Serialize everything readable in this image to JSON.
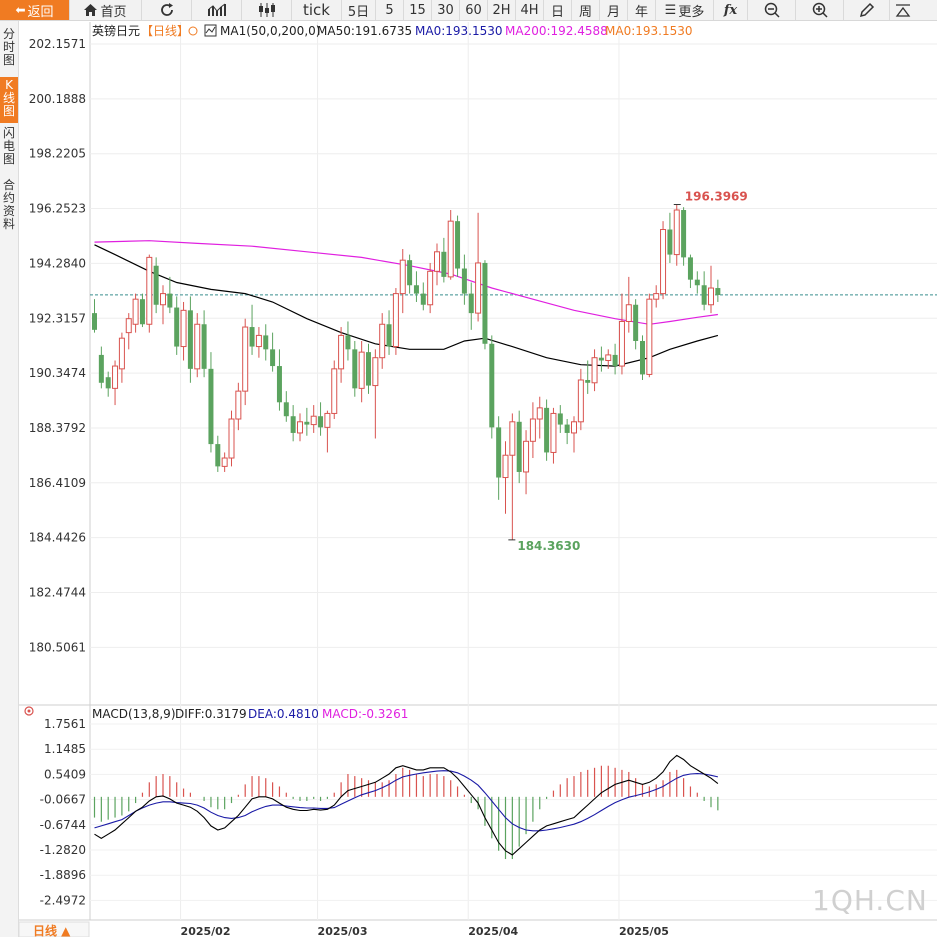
{
  "toolbar": {
    "back_label": "返回",
    "home_label": "首页",
    "tick_label": "tick",
    "periods": [
      "5日",
      "5",
      "15",
      "30",
      "60",
      "2H",
      "4H",
      "日",
      "周",
      "月",
      "年"
    ],
    "more_label": "更多",
    "fx_label": "fx"
  },
  "sidebar": {
    "items": [
      {
        "label": "分时图",
        "active": false
      },
      {
        "label": "K线图",
        "active": true
      },
      {
        "label": "闪电图",
        "active": false
      },
      {
        "label": "合约资料",
        "active": false
      }
    ]
  },
  "header": {
    "instrument": "英镑日元",
    "period_tag": "【日线】",
    "ma_indicator": "MA1(50,0,200,0)",
    "ma50_label": "MA50:191.6735",
    "ma0_label": "MA0:193.1530",
    "ma200_label": "MA200:192.4588",
    "ma0b_label": "MA0:193.1530"
  },
  "macd_header": {
    "name": "MACD(13,8,9)",
    "diff": "DIFF:0.3179",
    "dea": "DEA:0.4810",
    "macd": "MACD:-0.3261"
  },
  "footer": {
    "period_button": "日线 ▲"
  },
  "watermark": "1QH.CN",
  "colors": {
    "up": "#d9534f",
    "down": "#5ba35f",
    "ma50": "#000000",
    "ma200": "#e020e0",
    "diff": "#000000",
    "dea": "#1a1aa6",
    "accent": "#f07b22"
  },
  "chart_data": {
    "type": "candlestick",
    "price_axis_ticks": [
      202.1571,
      200.1888,
      198.2205,
      196.2523,
      194.284,
      192.3157,
      190.3474,
      188.3792,
      186.4109,
      184.4426,
      182.4744,
      180.5061
    ],
    "time_axis_labels": [
      "2025/02",
      "2025/03",
      "2025/04",
      "2025/05"
    ],
    "last_price": 193.153,
    "high_marker": 196.3969,
    "low_marker": 184.363,
    "candles": [
      {
        "o": 192.5,
        "h": 193.0,
        "l": 191.8,
        "c": 191.9
      },
      {
        "o": 191.0,
        "h": 191.3,
        "l": 189.8,
        "c": 190.0
      },
      {
        "o": 190.2,
        "h": 190.4,
        "l": 189.5,
        "c": 189.8
      },
      {
        "o": 189.8,
        "h": 190.8,
        "l": 189.2,
        "c": 190.6
      },
      {
        "o": 190.5,
        "h": 191.8,
        "l": 190.0,
        "c": 191.6
      },
      {
        "o": 191.8,
        "h": 192.5,
        "l": 191.2,
        "c": 192.3
      },
      {
        "o": 192.1,
        "h": 193.2,
        "l": 191.8,
        "c": 193.0
      },
      {
        "o": 193.0,
        "h": 193.2,
        "l": 192.0,
        "c": 192.1
      },
      {
        "o": 192.1,
        "h": 194.6,
        "l": 191.8,
        "c": 194.5
      },
      {
        "o": 194.2,
        "h": 194.5,
        "l": 192.5,
        "c": 192.8
      },
      {
        "o": 192.8,
        "h": 193.5,
        "l": 192.1,
        "c": 193.2
      },
      {
        "o": 193.2,
        "h": 193.8,
        "l": 192.5,
        "c": 192.7
      },
      {
        "o": 192.7,
        "h": 193.1,
        "l": 191.0,
        "c": 191.3
      },
      {
        "o": 191.3,
        "h": 192.9,
        "l": 190.8,
        "c": 192.6
      },
      {
        "o": 192.6,
        "h": 193.1,
        "l": 190.0,
        "c": 190.5
      },
      {
        "o": 190.5,
        "h": 192.5,
        "l": 190.2,
        "c": 192.1
      },
      {
        "o": 192.1,
        "h": 192.6,
        "l": 190.2,
        "c": 190.5
      },
      {
        "o": 190.5,
        "h": 191.1,
        "l": 187.5,
        "c": 187.8
      },
      {
        "o": 187.8,
        "h": 188.1,
        "l": 186.8,
        "c": 187.0
      },
      {
        "o": 187.0,
        "h": 187.5,
        "l": 186.8,
        "c": 187.3
      },
      {
        "o": 187.3,
        "h": 189.0,
        "l": 187.0,
        "c": 188.7
      },
      {
        "o": 188.7,
        "h": 190.0,
        "l": 188.3,
        "c": 189.7
      },
      {
        "o": 189.7,
        "h": 192.3,
        "l": 189.2,
        "c": 192.0
      },
      {
        "o": 192.0,
        "h": 192.8,
        "l": 191.0,
        "c": 191.3
      },
      {
        "o": 191.3,
        "h": 192.0,
        "l": 190.9,
        "c": 191.7
      },
      {
        "o": 191.7,
        "h": 192.1,
        "l": 190.8,
        "c": 191.2
      },
      {
        "o": 191.2,
        "h": 191.8,
        "l": 190.4,
        "c": 190.6
      },
      {
        "o": 190.6,
        "h": 191.2,
        "l": 189.0,
        "c": 189.3
      },
      {
        "o": 189.3,
        "h": 189.7,
        "l": 188.6,
        "c": 188.8
      },
      {
        "o": 188.8,
        "h": 189.2,
        "l": 187.9,
        "c": 188.2
      },
      {
        "o": 188.2,
        "h": 188.9,
        "l": 187.9,
        "c": 188.6
      },
      {
        "o": 188.6,
        "h": 189.1,
        "l": 188.1,
        "c": 188.5
      },
      {
        "o": 188.5,
        "h": 189.2,
        "l": 188.2,
        "c": 188.8
      },
      {
        "o": 188.8,
        "h": 189.3,
        "l": 188.1,
        "c": 188.4
      },
      {
        "o": 188.4,
        "h": 189.0,
        "l": 187.5,
        "c": 188.9
      },
      {
        "o": 188.9,
        "h": 190.8,
        "l": 188.7,
        "c": 190.5
      },
      {
        "o": 190.5,
        "h": 192.0,
        "l": 190.0,
        "c": 191.7
      },
      {
        "o": 191.7,
        "h": 192.2,
        "l": 190.8,
        "c": 191.2
      },
      {
        "o": 191.2,
        "h": 191.5,
        "l": 189.5,
        "c": 189.8
      },
      {
        "o": 189.8,
        "h": 191.5,
        "l": 189.3,
        "c": 191.1
      },
      {
        "o": 191.1,
        "h": 191.4,
        "l": 189.6,
        "c": 189.9
      },
      {
        "o": 189.9,
        "h": 191.2,
        "l": 188.0,
        "c": 190.9
      },
      {
        "o": 190.9,
        "h": 192.5,
        "l": 190.5,
        "c": 192.1
      },
      {
        "o": 192.1,
        "h": 192.6,
        "l": 191.0,
        "c": 191.3
      },
      {
        "o": 191.3,
        "h": 193.4,
        "l": 191.0,
        "c": 193.2
      },
      {
        "o": 193.2,
        "h": 194.8,
        "l": 192.5,
        "c": 194.4
      },
      {
        "o": 194.4,
        "h": 194.6,
        "l": 193.2,
        "c": 193.5
      },
      {
        "o": 193.5,
        "h": 194.0,
        "l": 192.9,
        "c": 193.2
      },
      {
        "o": 193.2,
        "h": 193.6,
        "l": 192.6,
        "c": 192.8
      },
      {
        "o": 192.8,
        "h": 194.3,
        "l": 192.5,
        "c": 194.0
      },
      {
        "o": 194.0,
        "h": 195.0,
        "l": 193.5,
        "c": 194.7
      },
      {
        "o": 194.7,
        "h": 195.2,
        "l": 193.6,
        "c": 193.8
      },
      {
        "o": 193.8,
        "h": 196.2,
        "l": 193.7,
        "c": 195.8
      },
      {
        "o": 195.8,
        "h": 196.0,
        "l": 193.8,
        "c": 194.1
      },
      {
        "o": 194.1,
        "h": 194.6,
        "l": 192.8,
        "c": 193.2
      },
      {
        "o": 193.2,
        "h": 193.6,
        "l": 191.9,
        "c": 192.5
      },
      {
        "o": 192.5,
        "h": 196.1,
        "l": 192.2,
        "c": 194.3
      },
      {
        "o": 194.3,
        "h": 194.4,
        "l": 191.2,
        "c": 191.4
      },
      {
        "o": 191.4,
        "h": 191.7,
        "l": 188.0,
        "c": 188.4
      },
      {
        "o": 188.4,
        "h": 188.8,
        "l": 185.8,
        "c": 186.6
      },
      {
        "o": 186.6,
        "h": 187.9,
        "l": 185.3,
        "c": 187.4
      },
      {
        "o": 187.4,
        "h": 188.9,
        "l": 184.363,
        "c": 188.6
      },
      {
        "o": 188.6,
        "h": 189.0,
        "l": 186.4,
        "c": 186.8
      },
      {
        "o": 186.8,
        "h": 188.3,
        "l": 186.0,
        "c": 187.9
      },
      {
        "o": 187.9,
        "h": 189.3,
        "l": 187.3,
        "c": 188.7
      },
      {
        "o": 188.7,
        "h": 189.5,
        "l": 188.0,
        "c": 189.1
      },
      {
        "o": 189.1,
        "h": 189.4,
        "l": 187.2,
        "c": 187.5
      },
      {
        "o": 187.5,
        "h": 189.1,
        "l": 187.1,
        "c": 188.9
      },
      {
        "o": 188.9,
        "h": 189.2,
        "l": 188.2,
        "c": 188.5
      },
      {
        "o": 188.5,
        "h": 188.7,
        "l": 187.8,
        "c": 188.2
      },
      {
        "o": 188.2,
        "h": 188.8,
        "l": 187.5,
        "c": 188.6
      },
      {
        "o": 188.6,
        "h": 190.5,
        "l": 188.3,
        "c": 190.1
      },
      {
        "o": 190.1,
        "h": 190.8,
        "l": 189.6,
        "c": 190.0
      },
      {
        "o": 190.0,
        "h": 191.2,
        "l": 189.7,
        "c": 190.9
      },
      {
        "o": 190.9,
        "h": 191.3,
        "l": 190.4,
        "c": 190.8
      },
      {
        "o": 190.8,
        "h": 191.2,
        "l": 190.5,
        "c": 191.0
      },
      {
        "o": 191.0,
        "h": 191.4,
        "l": 190.3,
        "c": 190.6
      },
      {
        "o": 190.6,
        "h": 193.2,
        "l": 190.3,
        "c": 192.2
      },
      {
        "o": 192.2,
        "h": 193.8,
        "l": 191.8,
        "c": 192.8
      },
      {
        "o": 192.8,
        "h": 193.0,
        "l": 191.2,
        "c": 191.5
      },
      {
        "o": 191.5,
        "h": 191.7,
        "l": 190.1,
        "c": 190.3
      },
      {
        "o": 190.3,
        "h": 193.2,
        "l": 190.2,
        "c": 193.0
      },
      {
        "o": 193.0,
        "h": 193.5,
        "l": 192.7,
        "c": 193.2
      },
      {
        "o": 193.2,
        "h": 195.8,
        "l": 193.0,
        "c": 195.5
      },
      {
        "o": 195.5,
        "h": 196.1,
        "l": 194.3,
        "c": 194.6
      },
      {
        "o": 194.6,
        "h": 196.397,
        "l": 194.2,
        "c": 196.2
      },
      {
        "o": 196.2,
        "h": 196.3,
        "l": 194.2,
        "c": 194.5
      },
      {
        "o": 194.5,
        "h": 194.6,
        "l": 193.4,
        "c": 193.7
      },
      {
        "o": 193.7,
        "h": 194.0,
        "l": 193.2,
        "c": 193.5
      },
      {
        "o": 193.5,
        "h": 194.0,
        "l": 192.6,
        "c": 192.8
      },
      {
        "o": 192.8,
        "h": 194.2,
        "l": 192.5,
        "c": 193.4
      },
      {
        "o": 193.4,
        "h": 193.7,
        "l": 192.9,
        "c": 193.15
      }
    ],
    "ma50": [
      {
        "i": 0,
        "v": 194.95
      },
      {
        "i": 3,
        "v": 194.6
      },
      {
        "i": 8,
        "v": 194.0
      },
      {
        "i": 12,
        "v": 193.6
      },
      {
        "i": 17,
        "v": 193.35
      },
      {
        "i": 22,
        "v": 193.2
      },
      {
        "i": 26,
        "v": 192.9
      },
      {
        "i": 31,
        "v": 192.3
      },
      {
        "i": 36,
        "v": 191.8
      },
      {
        "i": 41,
        "v": 191.4
      },
      {
        "i": 46,
        "v": 191.2
      },
      {
        "i": 51,
        "v": 191.2
      },
      {
        "i": 54,
        "v": 191.5
      },
      {
        "i": 57,
        "v": 191.6
      },
      {
        "i": 61,
        "v": 191.3
      },
      {
        "i": 66,
        "v": 190.9
      },
      {
        "i": 71,
        "v": 190.65
      },
      {
        "i": 76,
        "v": 190.6
      },
      {
        "i": 81,
        "v": 190.9
      },
      {
        "i": 84,
        "v": 191.2
      },
      {
        "i": 88,
        "v": 191.5
      },
      {
        "i": 91,
        "v": 191.7
      }
    ],
    "ma200": [
      {
        "i": 0,
        "v": 195.05
      },
      {
        "i": 8,
        "v": 195.1
      },
      {
        "i": 15,
        "v": 195.0
      },
      {
        "i": 23,
        "v": 194.9
      },
      {
        "i": 31,
        "v": 194.7
      },
      {
        "i": 39,
        "v": 194.5
      },
      {
        "i": 46,
        "v": 194.2
      },
      {
        "i": 52,
        "v": 193.9
      },
      {
        "i": 58,
        "v": 193.4
      },
      {
        "i": 64,
        "v": 193.0
      },
      {
        "i": 70,
        "v": 192.6
      },
      {
        "i": 76,
        "v": 192.3
      },
      {
        "i": 81,
        "v": 192.1
      },
      {
        "i": 84,
        "v": 192.2
      },
      {
        "i": 88,
        "v": 192.35
      },
      {
        "i": 91,
        "v": 192.45
      }
    ],
    "macd_axis_ticks": [
      1.7561,
      1.1485,
      0.5409,
      -0.0667,
      -0.6744,
      -1.282,
      -1.8896,
      -2.4972
    ],
    "macd_hist": [
      -0.5,
      -0.6,
      -0.55,
      -0.5,
      -0.45,
      -0.35,
      -0.15,
      0.1,
      0.35,
      0.5,
      0.55,
      0.5,
      0.35,
      0.2,
      0.1,
      0.0,
      -0.1,
      -0.25,
      -0.3,
      -0.3,
      -0.15,
      0.05,
      0.3,
      0.5,
      0.5,
      0.45,
      0.35,
      0.25,
      0.1,
      -0.05,
      -0.1,
      -0.1,
      -0.05,
      -0.1,
      -0.05,
      0.1,
      0.35,
      0.55,
      0.5,
      0.45,
      0.4,
      0.35,
      0.35,
      0.4,
      0.55,
      0.7,
      0.65,
      0.55,
      0.5,
      0.55,
      0.55,
      0.5,
      0.4,
      0.25,
      0.05,
      -0.15,
      -0.3,
      -0.7,
      -1.0,
      -1.3,
      -1.5,
      -1.5,
      -1.2,
      -0.9,
      -0.6,
      -0.3,
      -0.05,
      0.15,
      0.3,
      0.45,
      0.5,
      0.6,
      0.65,
      0.7,
      0.75,
      0.75,
      0.7,
      0.65,
      0.6,
      0.45,
      0.3,
      0.25,
      0.3,
      0.4,
      0.6,
      0.65,
      0.45,
      0.25,
      0.1,
      -0.1,
      -0.25,
      -0.3261
    ],
    "macd_diff": [
      -0.9,
      -1.0,
      -0.9,
      -0.8,
      -0.65,
      -0.5,
      -0.35,
      -0.25,
      -0.1,
      0.0,
      0.02,
      -0.05,
      -0.15,
      -0.2,
      -0.25,
      -0.35,
      -0.5,
      -0.7,
      -0.8,
      -0.75,
      -0.6,
      -0.45,
      -0.25,
      -0.05,
      0.0,
      0.0,
      -0.05,
      -0.15,
      -0.25,
      -0.3,
      -0.33,
      -0.33,
      -0.3,
      -0.32,
      -0.3,
      -0.2,
      0.0,
      0.15,
      0.2,
      0.25,
      0.3,
      0.35,
      0.45,
      0.55,
      0.7,
      0.75,
      0.7,
      0.65,
      0.65,
      0.7,
      0.7,
      0.7,
      0.6,
      0.45,
      0.25,
      0.05,
      -0.15,
      -0.5,
      -0.8,
      -1.1,
      -1.3,
      -1.4,
      -1.25,
      -1.1,
      -0.95,
      -0.8,
      -0.7,
      -0.65,
      -0.6,
      -0.55,
      -0.5,
      -0.35,
      -0.2,
      -0.05,
      0.1,
      0.2,
      0.3,
      0.35,
      0.4,
      0.35,
      0.3,
      0.35,
      0.45,
      0.6,
      0.85,
      1.0,
      0.9,
      0.75,
      0.65,
      0.55,
      0.45,
      0.3179
    ],
    "macd_dea": [
      -0.75,
      -0.7,
      -0.65,
      -0.6,
      -0.55,
      -0.45,
      -0.35,
      -0.27,
      -0.2,
      -0.15,
      -0.12,
      -0.12,
      -0.14,
      -0.15,
      -0.16,
      -0.2,
      -0.27,
      -0.37,
      -0.45,
      -0.5,
      -0.52,
      -0.5,
      -0.45,
      -0.36,
      -0.29,
      -0.23,
      -0.2,
      -0.2,
      -0.22,
      -0.24,
      -0.26,
      -0.27,
      -0.27,
      -0.28,
      -0.28,
      -0.26,
      -0.18,
      -0.1,
      -0.02,
      0.05,
      0.1,
      0.15,
      0.22,
      0.3,
      0.4,
      0.48,
      0.52,
      0.55,
      0.58,
      0.6,
      0.62,
      0.63,
      0.62,
      0.58,
      0.5,
      0.4,
      0.28,
      0.1,
      -0.1,
      -0.3,
      -0.5,
      -0.65,
      -0.74,
      -0.8,
      -0.82,
      -0.82,
      -0.8,
      -0.77,
      -0.74,
      -0.7,
      -0.66,
      -0.6,
      -0.52,
      -0.43,
      -0.33,
      -0.23,
      -0.14,
      -0.07,
      -0.01,
      0.03,
      0.07,
      0.12,
      0.18,
      0.25,
      0.35,
      0.45,
      0.52,
      0.55,
      0.56,
      0.55,
      0.52,
      0.481
    ]
  }
}
